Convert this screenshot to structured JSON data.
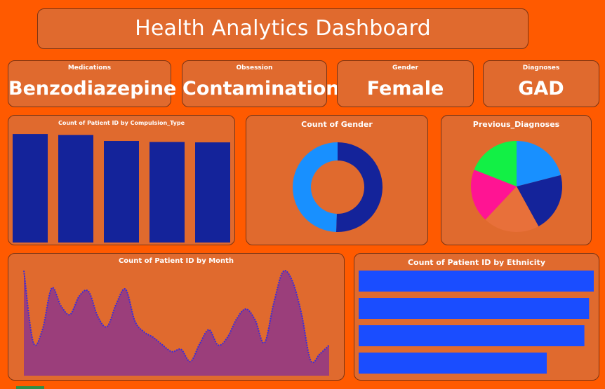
{
  "header": {
    "title": "Health Analytics Dashboard"
  },
  "kpis": [
    {
      "label": "Medications",
      "value": "Benzodiazepine"
    },
    {
      "label": "Obsession",
      "value": "Contamination"
    },
    {
      "label": "Gender",
      "value": "Female"
    },
    {
      "label": "Diagnoses",
      "value": "GAD"
    }
  ],
  "colors": {
    "background": "#ff5a00",
    "card": "#e06a2e",
    "bar_dark_blue": "#14239a",
    "bar_bright_blue": "#1a4dff",
    "area_fill": "#9b3e7b",
    "line": "#3a2dd8"
  },
  "chart_data": [
    {
      "type": "bar",
      "title": "Count of Patient ID by Compulsion_Type",
      "orientation": "vertical",
      "values": [
        296,
        293,
        277,
        274,
        273
      ],
      "ylim": [
        0,
        300
      ]
    },
    {
      "type": "pie",
      "variant": "donut",
      "title": "Count of Gender",
      "values": [
        50.5,
        49.5
      ],
      "colors": [
        "#14239a",
        "#1890ff"
      ]
    },
    {
      "type": "pie",
      "title": "Previous_Diagnoses",
      "values": [
        21,
        21,
        20,
        19,
        19
      ],
      "colors": [
        "#1890ff",
        "#14239a",
        "#e8703a",
        "#ff1493",
        "#12f045"
      ]
    },
    {
      "type": "area",
      "title": "Count of Patient ID by Month",
      "values": [
        96,
        31,
        42,
        80,
        64,
        56,
        73,
        77,
        54,
        45,
        66,
        79,
        50,
        40,
        35,
        28,
        22,
        24,
        13,
        29,
        42,
        28,
        35,
        52,
        61,
        51,
        30,
        66,
        95,
        87,
        57,
        14,
        20,
        28
      ],
      "note": "smoothed line"
    },
    {
      "type": "bar",
      "title": "Count of Patient ID by Ethnicity",
      "orientation": "horizontal",
      "values": [
        100,
        98,
        96,
        80
      ],
      "xlim": [
        0,
        100
      ]
    }
  ]
}
